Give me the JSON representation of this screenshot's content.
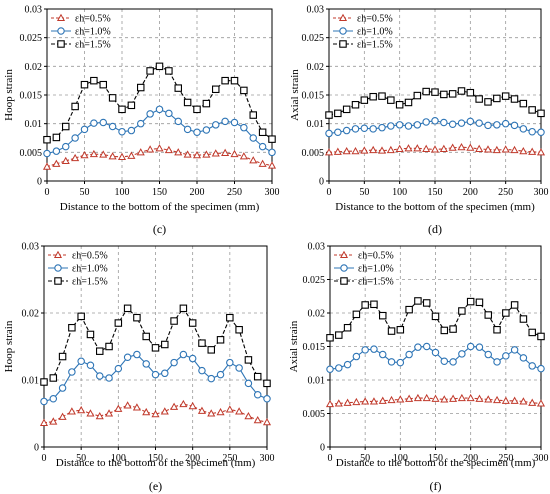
{
  "chart_data": [
    {
      "type": "line",
      "panel_label": "(c)",
      "xlabel": "Distance to the bottom of the specimen (mm)",
      "ylabel": "Hoop strain",
      "xlim": [
        0,
        300
      ],
      "ylim": [
        0,
        0.03
      ],
      "x_ticks": [
        "0",
        "50",
        "100",
        "150",
        "200",
        "250",
        "300"
      ],
      "y_ticks": [
        "0",
        "0.005",
        "0.01",
        "0.015",
        "0.02",
        "0.025",
        "0.03"
      ],
      "grid": true,
      "legend_position": "top-left",
      "x": [
        0,
        12.5,
        25,
        37.5,
        50,
        62.5,
        75,
        87.5,
        100,
        112.5,
        125,
        137.5,
        150,
        162.5,
        175,
        187.5,
        200,
        212.5,
        225,
        237.5,
        250,
        262.5,
        275,
        287.5,
        300
      ],
      "series": [
        {
          "name": "εh=0.5%",
          "color": "#c0392b",
          "marker": "triangle",
          "values": [
            0.0025,
            0.003,
            0.0035,
            0.004,
            0.0045,
            0.0047,
            0.0046,
            0.0043,
            0.0042,
            0.0044,
            0.005,
            0.0055,
            0.0057,
            0.0054,
            0.005,
            0.0046,
            0.0045,
            0.0046,
            0.0048,
            0.0049,
            0.0047,
            0.0043,
            0.0036,
            0.003,
            0.0027
          ]
        },
        {
          "name": "εh=1.0%",
          "color": "#2e75b6",
          "marker": "circle",
          "values": [
            0.0048,
            0.0052,
            0.006,
            0.0075,
            0.009,
            0.0101,
            0.0102,
            0.0095,
            0.0086,
            0.0088,
            0.01,
            0.0117,
            0.0125,
            0.0118,
            0.0104,
            0.009,
            0.0085,
            0.0089,
            0.0098,
            0.0104,
            0.0102,
            0.0093,
            0.0075,
            0.006,
            0.005
          ]
        },
        {
          "name": "εh=1.5%",
          "color": "#000000",
          "marker": "square",
          "values": [
            0.0072,
            0.0076,
            0.0095,
            0.013,
            0.0168,
            0.0175,
            0.0168,
            0.0145,
            0.0125,
            0.0132,
            0.0163,
            0.0192,
            0.02,
            0.0192,
            0.0162,
            0.0137,
            0.0125,
            0.0135,
            0.016,
            0.0175,
            0.0175,
            0.0158,
            0.0115,
            0.0085,
            0.0073
          ]
        }
      ]
    },
    {
      "type": "line",
      "panel_label": "(d)",
      "xlabel": "Distance to the bottom of the specimen (mm)",
      "ylabel": "Axial strain",
      "xlim": [
        0,
        300
      ],
      "ylim": [
        0,
        0.03
      ],
      "x_ticks": [
        "0",
        "50",
        "100",
        "150",
        "200",
        "250",
        "300"
      ],
      "y_ticks": [
        "0",
        "0.005",
        "0.01",
        "0.015",
        "0.02",
        "0.025",
        "0.03"
      ],
      "grid": true,
      "legend_position": "top-left",
      "x": [
        0,
        12.5,
        25,
        37.5,
        50,
        62.5,
        75,
        87.5,
        100,
        112.5,
        125,
        137.5,
        150,
        162.5,
        175,
        187.5,
        200,
        212.5,
        225,
        237.5,
        250,
        262.5,
        275,
        287.5,
        300
      ],
      "series": [
        {
          "name": "εh=0.5%",
          "color": "#c0392b",
          "marker": "triangle",
          "values": [
            0.005,
            0.0051,
            0.0052,
            0.0052,
            0.0053,
            0.0054,
            0.0053,
            0.0054,
            0.0056,
            0.0057,
            0.0057,
            0.0056,
            0.0055,
            0.0056,
            0.0058,
            0.0059,
            0.0058,
            0.0056,
            0.0055,
            0.0054,
            0.0055,
            0.0054,
            0.0052,
            0.0051,
            0.005
          ]
        },
        {
          "name": "εh=1.0%",
          "color": "#2e75b6",
          "marker": "circle",
          "values": [
            0.0083,
            0.0085,
            0.0088,
            0.0091,
            0.0092,
            0.0091,
            0.0093,
            0.0096,
            0.0098,
            0.0096,
            0.0098,
            0.0103,
            0.0105,
            0.0102,
            0.0099,
            0.0101,
            0.0104,
            0.0101,
            0.0097,
            0.0098,
            0.01,
            0.0097,
            0.0091,
            0.0086,
            0.0085
          ]
        },
        {
          "name": "εh=1.5%",
          "color": "#000000",
          "marker": "square",
          "values": [
            0.0115,
            0.0118,
            0.0125,
            0.0133,
            0.0141,
            0.0147,
            0.0148,
            0.0141,
            0.0133,
            0.0137,
            0.0149,
            0.0156,
            0.0155,
            0.0151,
            0.0152,
            0.0157,
            0.0154,
            0.0143,
            0.0138,
            0.0144,
            0.0148,
            0.0143,
            0.0135,
            0.0124,
            0.0118
          ]
        }
      ]
    },
    {
      "type": "line",
      "panel_label": "(e)",
      "xlabel": "Distance to the bottom of the specimen (mm)",
      "ylabel": "Hoop strain",
      "xlim": [
        0,
        300
      ],
      "ylim": [
        0,
        0.03
      ],
      "x_ticks": [
        "0",
        "50",
        "100",
        "150",
        "200",
        "250",
        "300"
      ],
      "y_ticks": [
        "0",
        "0.01",
        "0.02",
        "0.03"
      ],
      "grid": true,
      "legend_position": "top-left",
      "x": [
        0,
        12.5,
        25,
        37.5,
        50,
        62.5,
        75,
        87.5,
        100,
        112.5,
        125,
        137.5,
        150,
        162.5,
        175,
        187.5,
        200,
        212.5,
        225,
        237.5,
        250,
        262.5,
        275,
        287.5,
        300
      ],
      "series": [
        {
          "name": "εh=0.5%",
          "color": "#c0392b",
          "marker": "triangle",
          "values": [
            0.0036,
            0.0038,
            0.0045,
            0.0053,
            0.0055,
            0.005,
            0.0046,
            0.005,
            0.0057,
            0.0062,
            0.0059,
            0.0052,
            0.0049,
            0.0053,
            0.006,
            0.0064,
            0.0061,
            0.0054,
            0.005,
            0.0052,
            0.0056,
            0.0053,
            0.0046,
            0.004,
            0.0037
          ]
        },
        {
          "name": "εh=1.0%",
          "color": "#2e75b6",
          "marker": "circle",
          "values": [
            0.0068,
            0.0072,
            0.0088,
            0.0112,
            0.0128,
            0.0122,
            0.0106,
            0.0103,
            0.0117,
            0.0134,
            0.0138,
            0.0124,
            0.0108,
            0.011,
            0.0126,
            0.0138,
            0.0132,
            0.0114,
            0.0102,
            0.0108,
            0.0126,
            0.0118,
            0.0095,
            0.0078,
            0.0072
          ]
        },
        {
          "name": "εh=1.5%",
          "color": "#000000",
          "marker": "square",
          "values": [
            0.0097,
            0.0103,
            0.0135,
            0.0178,
            0.0195,
            0.0168,
            0.0143,
            0.015,
            0.0185,
            0.0207,
            0.0193,
            0.0165,
            0.0148,
            0.0153,
            0.0188,
            0.0207,
            0.0185,
            0.0155,
            0.0145,
            0.016,
            0.0193,
            0.0175,
            0.013,
            0.0105,
            0.0095
          ]
        }
      ]
    },
    {
      "type": "line",
      "panel_label": "(f)",
      "xlabel": "Distance to the bottom of the specimen (mm)",
      "ylabel": "Axial strain",
      "xlim": [
        0,
        300
      ],
      "ylim": [
        0,
        0.03
      ],
      "x_ticks": [
        "0",
        "50",
        "100",
        "150",
        "200",
        "250",
        "300"
      ],
      "y_ticks": [
        "0",
        "0.005",
        "0.01",
        "0.015",
        "0.02",
        "0.025",
        "0.03"
      ],
      "grid": true,
      "legend_position": "top-left",
      "x": [
        0,
        12.5,
        25,
        37.5,
        50,
        62.5,
        75,
        87.5,
        100,
        112.5,
        125,
        137.5,
        150,
        162.5,
        175,
        187.5,
        200,
        212.5,
        225,
        237.5,
        250,
        262.5,
        275,
        287.5,
        300
      ],
      "series": [
        {
          "name": "εh=0.5%",
          "color": "#c0392b",
          "marker": "triangle",
          "values": [
            0.0064,
            0.0065,
            0.0066,
            0.0067,
            0.0068,
            0.0068,
            0.0069,
            0.007,
            0.0071,
            0.0072,
            0.0073,
            0.0073,
            0.0072,
            0.0071,
            0.0072,
            0.0073,
            0.0073,
            0.0072,
            0.0071,
            0.007,
            0.0069,
            0.0069,
            0.0068,
            0.0066,
            0.0065
          ]
        },
        {
          "name": "εh=1.0%",
          "color": "#2e75b6",
          "marker": "circle",
          "values": [
            0.0116,
            0.0118,
            0.0123,
            0.0135,
            0.0145,
            0.0146,
            0.0138,
            0.0127,
            0.0126,
            0.0138,
            0.0149,
            0.015,
            0.0141,
            0.0128,
            0.0127,
            0.0139,
            0.015,
            0.0149,
            0.0138,
            0.0127,
            0.0136,
            0.0145,
            0.0133,
            0.0121,
            0.0117
          ]
        },
        {
          "name": "εh=1.5%",
          "color": "#000000",
          "marker": "square",
          "values": [
            0.0163,
            0.0167,
            0.0178,
            0.0198,
            0.0212,
            0.0213,
            0.0196,
            0.0173,
            0.0175,
            0.0205,
            0.0218,
            0.0215,
            0.0195,
            0.0174,
            0.0176,
            0.0203,
            0.0217,
            0.0216,
            0.0197,
            0.0175,
            0.02,
            0.0212,
            0.0191,
            0.0171,
            0.0165
          ]
        }
      ]
    }
  ]
}
